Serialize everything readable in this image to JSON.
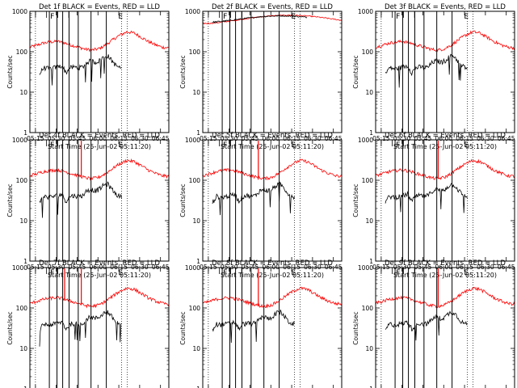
{
  "chart_data": {
    "type": "line",
    "layout": "3x3 grid of panels",
    "start_time_label": "Start Time (25-Jun-02 05:11:20)",
    "ylabel": "Counts/sec",
    "yscale": "log",
    "ylim": [
      1,
      1000
    ],
    "y_ticks": [
      "1",
      "10",
      "100",
      "1000"
    ],
    "x_ticks": [
      "05:15",
      "05:30",
      "05:45",
      "06:00",
      "06:15",
      "06:30",
      "06:45"
    ],
    "xlim_minutes": [
      0,
      100
    ],
    "colors": {
      "events": "#000000",
      "lld": "#ff0000",
      "background": "#ffffff"
    },
    "panels": [
      {
        "title": "Det  1f BLACK = Events, RED = LLD",
        "kind": "a",
        "lines": [
          14,
          19.5,
          23.6,
          28.2,
          34.8,
          44,
          55
        ],
        "markers": {
          "F": 14,
          "E": 63
        }
      },
      {
        "title": "Det  2f BLACK = Events, RED = LLD",
        "kind": "b",
        "lines": [
          14,
          19.5,
          23.6,
          28.2,
          34.8,
          44,
          55
        ],
        "markers": {
          "F": 14,
          "E": 63
        }
      },
      {
        "title": "Det  3f BLACK = Events, RED = LLD",
        "kind": "a",
        "lines": [
          14,
          19.5,
          23.6,
          28.2,
          34.8,
          44,
          55
        ],
        "markers": {
          "F": 14,
          "E": 63
        }
      },
      {
        "title": "Det  4f BLACK = Events, RED = LLD",
        "kind": "a",
        "lines": [
          14,
          19.5,
          23.6,
          28.2,
          34.8,
          44,
          55
        ],
        "markers": {
          "F": 14,
          "E": 63
        },
        "spikes": [
          37
        ]
      },
      {
        "title": "Det  5f BLACK = Events, RED = LLD",
        "kind": "a",
        "lines": [
          14,
          19.5,
          23.6,
          28.2,
          34.8,
          44,
          55
        ],
        "markers": {
          "F": 14,
          "E": 63
        },
        "spikes": [
          40
        ]
      },
      {
        "title": "Det  6f BLACK = Events, RED = LLD",
        "kind": "a",
        "lines": [
          14,
          19.5,
          23.6,
          28.2,
          34.8,
          44,
          55
        ],
        "markers": {
          "F": 14,
          "E": 63
        },
        "spikes": [
          45
        ]
      },
      {
        "title": "Det  7f BLACK = Events, RED = LLD",
        "kind": "a",
        "lines": [
          14,
          19.5,
          23.6,
          28.2,
          34.8,
          44,
          55
        ],
        "markers": {
          "F": 14,
          "E": 63
        },
        "spikes": [
          25,
          37
        ]
      },
      {
        "title": "Det  8f BLACK = Events, RED = LLD",
        "kind": "a",
        "lines": [
          14,
          19.5,
          23.6,
          28.2,
          34.8,
          44,
          55
        ],
        "markers": {
          "F": 14,
          "E": 63
        },
        "spikes": [
          40
        ]
      },
      {
        "title": "Det  9f BLACK = Events, RED = LLD",
        "kind": "a",
        "lines": [
          14,
          19.5,
          23.6,
          28.2,
          34.8,
          44,
          55
        ],
        "markers": {
          "F": 14,
          "E": 63
        },
        "spikes": [
          45
        ]
      }
    ],
    "series": [
      {
        "name": "Events",
        "color": "black",
        "x_minutes": [
          7,
          10,
          14,
          17,
          20,
          23,
          26,
          29,
          32,
          35,
          38,
          41,
          44,
          47,
          50,
          53,
          56,
          59,
          62,
          65
        ],
        "values": [
          28,
          40,
          38,
          40,
          42,
          45,
          30,
          40,
          42,
          40,
          42,
          55,
          60,
          55,
          60,
          75,
          80,
          60,
          45,
          40
        ]
      },
      {
        "name": "LLD",
        "color": "red",
        "x_minutes": [
          0,
          5,
          10,
          15,
          20,
          25,
          30,
          35,
          40,
          45,
          50,
          55,
          60,
          65,
          70,
          75,
          80,
          85,
          90,
          95,
          100
        ],
        "values": [
          130,
          145,
          165,
          175,
          180,
          165,
          145,
          130,
          115,
          110,
          120,
          150,
          200,
          260,
          310,
          290,
          230,
          180,
          150,
          130,
          125
        ]
      }
    ]
  }
}
